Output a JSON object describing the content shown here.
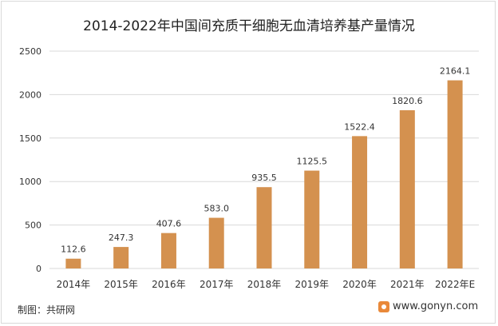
{
  "chart_data": {
    "type": "bar",
    "title": "2014-2022年中国间充质干细胞无血清培养基产量情况",
    "categories": [
      "2014年",
      "2015年",
      "2016年",
      "2017年",
      "2018年",
      "2019年",
      "2020年",
      "2021年",
      "2022年E"
    ],
    "values": [
      112.6,
      247.3,
      407.6,
      583.0,
      935.5,
      1125.5,
      1522.4,
      1820.6,
      2164.1
    ],
    "value_labels": [
      "112.6",
      "247.3",
      "407.6",
      "583.0",
      "935.5",
      "1125.5",
      "1522.4",
      "1820.6",
      "2164.1"
    ],
    "ylim": [
      0,
      2500
    ],
    "yticks": [
      0,
      500,
      1000,
      1500,
      2000,
      2500
    ],
    "xlabel": "",
    "ylabel": "",
    "grid": true,
    "bar_color": "#d4914f"
  },
  "footer": {
    "source": "制图：共研网",
    "site": "www.gonyn.com"
  },
  "colors": {
    "bar": "#d4914f",
    "grid": "#d9d9d9",
    "text": "#333333"
  }
}
